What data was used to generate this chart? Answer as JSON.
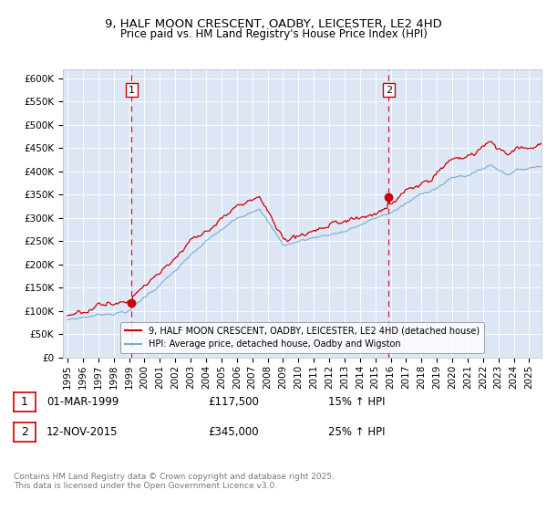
{
  "title": "9, HALF MOON CRESCENT, OADBY, LEICESTER, LE2 4HD",
  "subtitle": "Price paid vs. HM Land Registry's House Price Index (HPI)",
  "ylim": [
    0,
    620000
  ],
  "yticks": [
    0,
    50000,
    100000,
    150000,
    200000,
    250000,
    300000,
    350000,
    400000,
    450000,
    500000,
    550000,
    600000
  ],
  "ytick_labels": [
    "£0",
    "£50K",
    "£100K",
    "£150K",
    "£200K",
    "£250K",
    "£300K",
    "£350K",
    "£400K",
    "£450K",
    "£500K",
    "£550K",
    "£600K"
  ],
  "bg_color": "#dce6f5",
  "grid_color": "#ffffff",
  "sale1_date": 1999.17,
  "sale1_price": 117500,
  "sale1_label": "1",
  "sale2_date": 2015.87,
  "sale2_price": 345000,
  "sale2_label": "2",
  "legend_line1": "9, HALF MOON CRESCENT, OADBY, LEICESTER, LE2 4HD (detached house)",
  "legend_line2": "HPI: Average price, detached house, Oadby and Wigston",
  "footer": "Contains HM Land Registry data © Crown copyright and database right 2025.\nThis data is licensed under the Open Government Licence v3.0.",
  "line_red": "#cc0000",
  "line_blue": "#7aadcf",
  "dashed_red": "#cc0000",
  "xlim_start": 1994.7,
  "xlim_end": 2025.8
}
